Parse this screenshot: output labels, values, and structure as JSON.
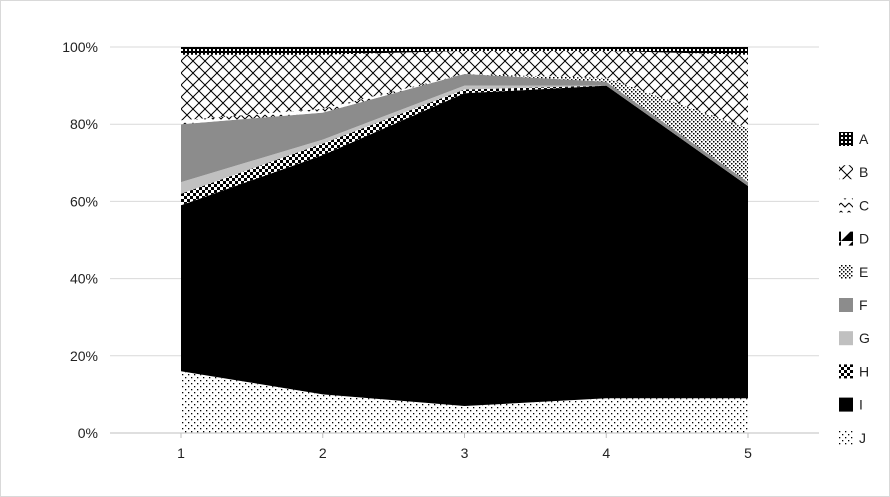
{
  "chart_data": {
    "type": "area",
    "stacked": "percent",
    "x": [
      "1",
      "2",
      "3",
      "4",
      "5"
    ],
    "ylim": [
      0,
      100
    ],
    "yticks": [
      "0%",
      "20%",
      "40%",
      "60%",
      "80%",
      "100%"
    ],
    "grid": true,
    "legend_position": "right",
    "series": [
      {
        "name": "J",
        "values": [
          16,
          10,
          7,
          9,
          9
        ],
        "pattern": "dots-sparse"
      },
      {
        "name": "I",
        "values": [
          43,
          62,
          81,
          81,
          55
        ],
        "pattern": "solid-black"
      },
      {
        "name": "H",
        "values": [
          3,
          3,
          1,
          0,
          0
        ],
        "pattern": "checker"
      },
      {
        "name": "G",
        "values": [
          3,
          1,
          1,
          0,
          0
        ],
        "pattern": "light-gray"
      },
      {
        "name": "F",
        "values": [
          15,
          7,
          3,
          1,
          1
        ],
        "pattern": "gray"
      },
      {
        "name": "E",
        "values": [
          0,
          0,
          0,
          1,
          14
        ],
        "pattern": "dots-dense"
      },
      {
        "name": "D",
        "values": [
          0,
          0,
          0,
          0,
          0
        ],
        "pattern": "diagonal-half"
      },
      {
        "name": "C",
        "values": [
          1,
          1,
          0,
          0,
          0
        ],
        "pattern": "small-check"
      },
      {
        "name": "B",
        "values": [
          17,
          14,
          6,
          7,
          19
        ],
        "pattern": "cross-hatch"
      },
      {
        "name": "A",
        "values": [
          2,
          2,
          1,
          1,
          2
        ],
        "pattern": "grid-dark"
      }
    ]
  }
}
